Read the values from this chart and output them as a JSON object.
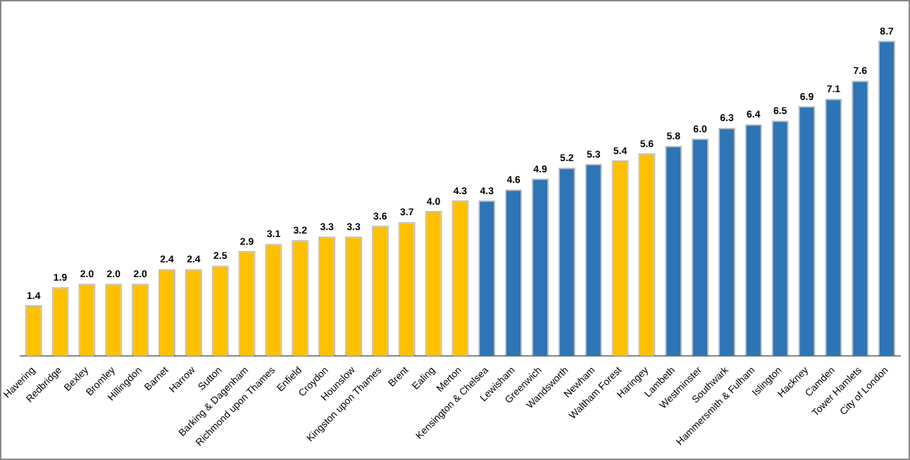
{
  "chart_data": {
    "type": "bar",
    "categories": [
      "Havering",
      "Redbridge",
      "Bexley",
      "Bromley",
      "Hillingdon",
      "Barnet",
      "Harrow",
      "Sutton",
      "Barking & Dagenham",
      "Richmond upon Thames",
      "Enfield",
      "Croydon",
      "Hounslow",
      "Kingston upon Thames",
      "Brent",
      "Ealing",
      "Merton",
      "Kensington & Chelsea",
      "Lewisham",
      "Greenwich",
      "Wandsworth",
      "Newham",
      "Waltham Forest",
      "Haringey",
      "Lambeth",
      "Westminster",
      "Southwark",
      "Hammersmith & Fulham",
      "Islington",
      "Hackney",
      "Camden",
      "Tower Hamlets",
      "City of London"
    ],
    "values": [
      1.4,
      1.9,
      2.0,
      2.0,
      2.0,
      2.4,
      2.4,
      2.5,
      2.9,
      3.1,
      3.2,
      3.3,
      3.3,
      3.6,
      3.7,
      4.0,
      4.3,
      4.3,
      4.6,
      4.9,
      5.2,
      5.3,
      5.4,
      5.6,
      5.8,
      6.0,
      6.3,
      6.4,
      6.5,
      6.9,
      7.1,
      7.6,
      8.7
    ],
    "colors": [
      "#ffc000",
      "#ffc000",
      "#ffc000",
      "#ffc000",
      "#ffc000",
      "#ffc000",
      "#ffc000",
      "#ffc000",
      "#ffc000",
      "#ffc000",
      "#ffc000",
      "#ffc000",
      "#ffc000",
      "#ffc000",
      "#ffc000",
      "#ffc000",
      "#ffc000",
      "#2e75b6",
      "#2e75b6",
      "#2e75b6",
      "#2e75b6",
      "#2e75b6",
      "#ffc000",
      "#ffc000",
      "#2e75b6",
      "#2e75b6",
      "#2e75b6",
      "#2e75b6",
      "#2e75b6",
      "#2e75b6",
      "#2e75b6",
      "#2e75b6",
      "#2e75b6"
    ],
    "value_labels": [
      "1.4",
      "1.9",
      "2.0",
      "2.0",
      "2.0",
      "2.4",
      "2.4",
      "2.5",
      "2.9",
      "3.1",
      "3.2",
      "3.3",
      "3.3",
      "3.6",
      "3.7",
      "4.0",
      "4.3",
      "4.3",
      "4.6",
      "4.9",
      "5.2",
      "5.3",
      "5.4",
      "5.6",
      "5.8",
      "6.0",
      "6.3",
      "6.4",
      "6.5",
      "6.9",
      "7.1",
      "7.6",
      "8.7"
    ],
    "grid": false,
    "legend": false
  }
}
